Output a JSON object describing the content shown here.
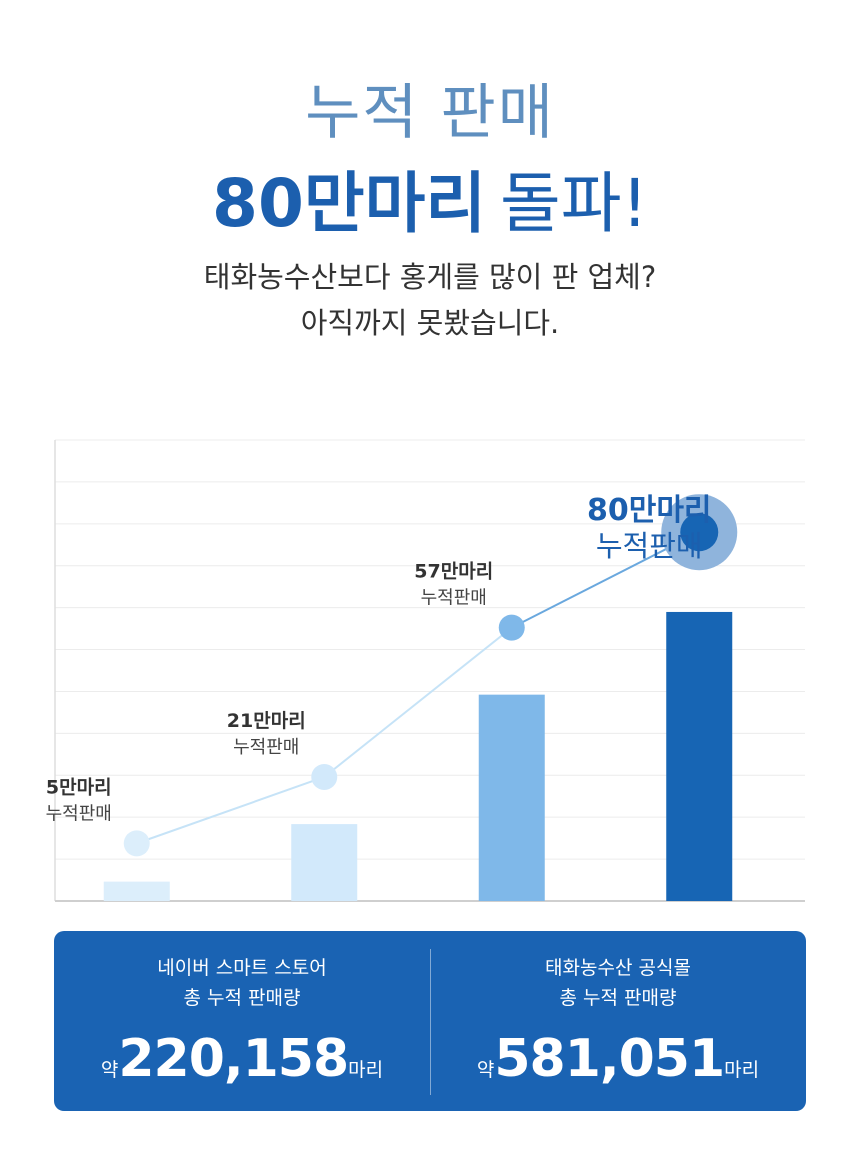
{
  "header": {
    "line1": "누적 판매",
    "line2_bold": "80만마리",
    "line2_rest": "돌파!",
    "subtitle_line1": "태화농수산보다 홍게를 많이 판 업체?",
    "subtitle_line2": "아직까지 못봤습니다."
  },
  "chart_data": {
    "type": "bar",
    "categories": [
      "",
      "",
      "",
      ""
    ],
    "values": [
      5,
      21,
      57,
      80
    ],
    "value_labels": [
      "5만마리",
      "21만마리",
      "57만마리",
      "80만마리"
    ],
    "point_caption": "누적판매",
    "ylim": [
      0,
      100
    ],
    "grid": true,
    "bar_colors": [
      "#dceefb",
      "#d2e9fb",
      "#7fb8e9",
      "#1765b4"
    ],
    "point_colors": [
      "#dceefb",
      "#d2e9fb",
      "#7fb8e9",
      "#1765b4"
    ],
    "highlight_color": "#1c5fae"
  },
  "summary": {
    "left": {
      "label_line1": "네이버 스마트 스토어",
      "label_line2": "총 누적 판매량",
      "prefix": "약",
      "value": "220,158",
      "suffix": "마리"
    },
    "right": {
      "label_line1": "태화농수산 공식몰",
      "label_line2": "총 누적 판매량",
      "prefix": "약",
      "value": "581,051",
      "suffix": "마리"
    }
  }
}
